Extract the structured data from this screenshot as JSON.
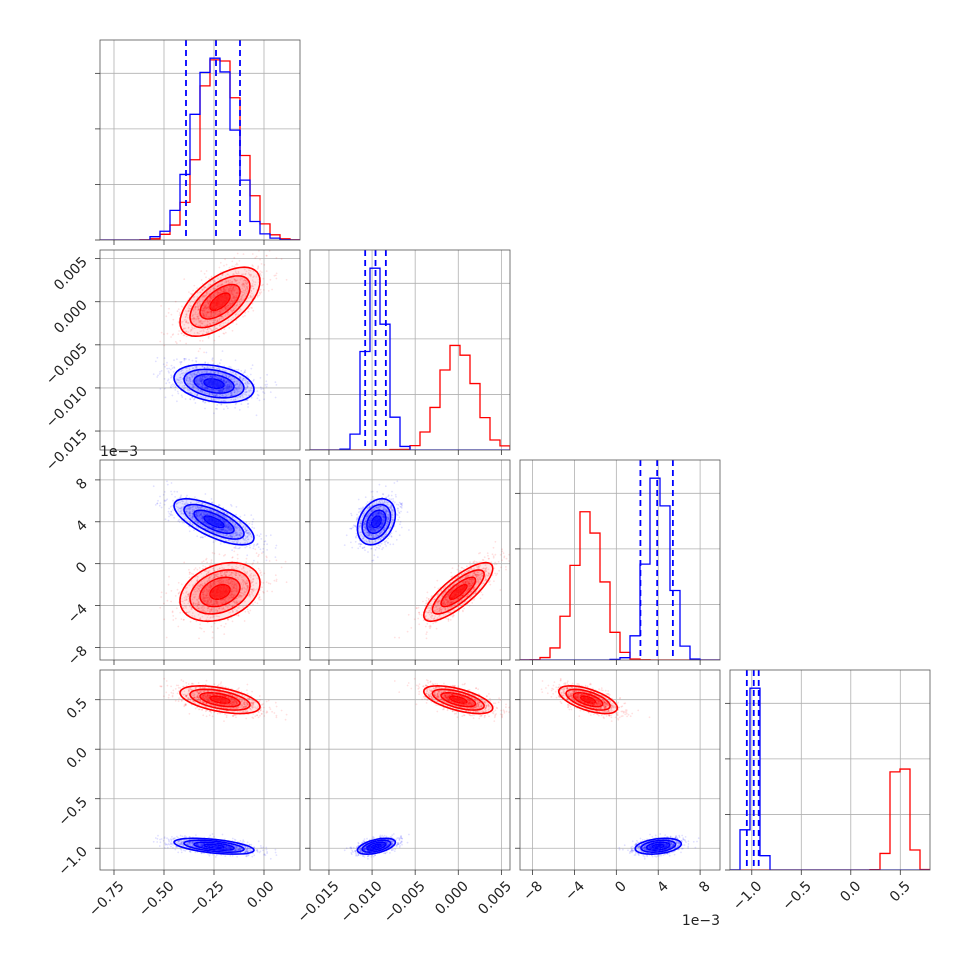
{
  "chart_data": {
    "type": "corner",
    "title": "",
    "params": [
      {
        "ticks": [
          -0.75,
          -0.5,
          -0.25,
          0.0
        ],
        "tick_labels": [
          "−0.75",
          "−0.50",
          "−0.25",
          "0.00"
        ],
        "range": [
          -0.82,
          0.18
        ],
        "offset": ""
      },
      {
        "ticks": [
          -0.015,
          -0.01,
          -0.005,
          0.0,
          0.005
        ],
        "tick_labels": [
          "−0.015",
          "−0.010",
          "−0.005",
          "0.000",
          "0.005"
        ],
        "range": [
          -0.0172,
          0.006
        ],
        "offset": ""
      },
      {
        "ticks": [
          -8,
          -4,
          0,
          4,
          8
        ],
        "tick_labels": [
          "−8",
          "−4",
          "0",
          "4",
          "8"
        ],
        "range": [
          -9.2,
          9.9
        ],
        "offset": "1e−3"
      },
      {
        "ticks": [
          -1.0,
          -0.5,
          0.0,
          0.5
        ],
        "tick_labels": [
          "−1.0",
          "−0.5",
          "0.0",
          "0.5"
        ],
        "range": [
          -1.22,
          0.8
        ],
        "offset": ""
      }
    ],
    "series": [
      {
        "color": "#ff0000",
        "mean": [
          -0.22,
          0.0,
          -2.7,
          0.5
        ],
        "std": [
          0.1,
          0.002,
          1.4,
          0.07
        ],
        "corr": [
          [
            1,
            0.6,
            0.3,
            -0.5
          ],
          [
            0.6,
            1,
            0.8,
            -0.6
          ],
          [
            0.3,
            0.8,
            1,
            -0.6
          ],
          [
            -0.5,
            -0.6,
            -0.6,
            1
          ]
        ],
        "quantiles": null
      },
      {
        "color": "#0000ff",
        "mean": [
          -0.25,
          -0.0095,
          4.0,
          -0.98
        ],
        "std": [
          0.1,
          0.0011,
          1.1,
          0.04
        ],
        "corr": [
          [
            1,
            -0.3,
            -0.7,
            -0.5
          ],
          [
            -0.3,
            1,
            0.3,
            0.5
          ],
          [
            -0.7,
            0.3,
            1,
            0.3
          ],
          [
            -0.5,
            0.5,
            0.3,
            1
          ]
        ],
        "quantiles": [
          [
            -0.39,
            -0.24,
            -0.12
          ],
          [
            -0.0108,
            -0.0096,
            -0.0084
          ],
          [
            2.3,
            3.9,
            5.4
          ],
          [
            -1.05,
            -0.98,
            -0.93
          ]
        ]
      }
    ],
    "grid": true,
    "legend": "none"
  }
}
